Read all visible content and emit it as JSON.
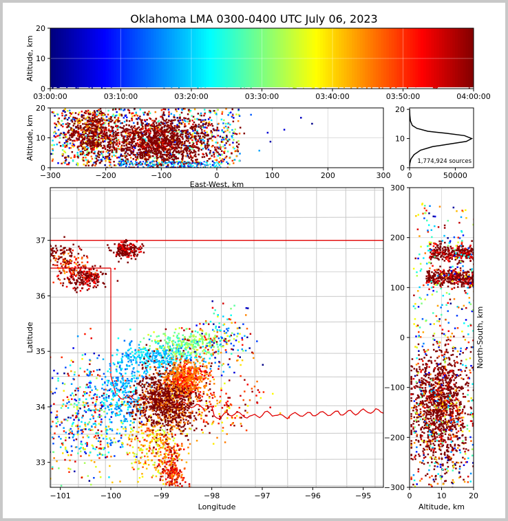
{
  "title": "Oklahoma LMA 0300-0400 UTC July 06, 2023",
  "colors": {
    "state_line": "#e00000",
    "county_line": "#c8c8c8",
    "grid": "#dddddd"
  },
  "colormap": [
    "#00007f",
    "#0000ff",
    "#007fff",
    "#00ffff",
    "#7fff7f",
    "#ffff00",
    "#ff7f00",
    "#ff0000",
    "#7f0000"
  ],
  "chart_data": [
    {
      "type": "scatter",
      "name_key": "time_altitude",
      "xlabel": "",
      "ylabel": "Altitude, km",
      "xlim": [
        "03:00:00",
        "04:00:00"
      ],
      "ylim": [
        0,
        20
      ],
      "x_ticks": [
        "03:00:00",
        "03:10:00",
        "03:20:00",
        "03:30:00",
        "03:40:00",
        "03:50:00",
        "04:00:00"
      ],
      "y_ticks": [
        0,
        10,
        20
      ],
      "note_color": "sources colored by time"
    },
    {
      "type": "scatter",
      "name_key": "ew_altitude",
      "xlabel": "East-West, km",
      "ylabel": "Altitude, km",
      "xlim": [
        -300,
        300
      ],
      "ylim": [
        0,
        20
      ],
      "x_ticks": [
        -300,
        -200,
        -100,
        0,
        100,
        200,
        300
      ],
      "y_ticks": [
        0,
        10,
        20
      ]
    },
    {
      "type": "line",
      "name_key": "altitude_histogram",
      "xlabel": "",
      "ylabel": "",
      "xlim": [
        0,
        70000
      ],
      "ylim": [
        0,
        20
      ],
      "x_ticks": [
        "0",
        "50000"
      ],
      "y_ticks": [
        0,
        10,
        20
      ],
      "annotation": "1,774,924 sources",
      "x": [
        0,
        300,
        1500,
        5000,
        12000,
        25000,
        45000,
        62000,
        68000,
        60000,
        40000,
        20000,
        8000,
        3000,
        1000,
        300,
        100
      ],
      "y": [
        0.5,
        1.5,
        3,
        4.5,
        6,
        7.2,
        8.2,
        9,
        10,
        11,
        11.8,
        12.5,
        13.5,
        14.5,
        16,
        18,
        20
      ]
    },
    {
      "type": "scatter",
      "name_key": "plan_view",
      "xlabel": "Longitude",
      "ylabel": "Latitude",
      "xlim": [
        -101.2,
        -94.6
      ],
      "ylim": [
        32.55,
        37.95
      ],
      "x_ticks": [
        -101,
        -100,
        -99,
        -98,
        -97,
        -96,
        -95
      ],
      "y_ticks": [
        33,
        34,
        35,
        36,
        37
      ],
      "x_tick_labels": [
        "−101",
        "−100",
        "−99",
        "−98",
        "−97",
        "−96",
        "−95"
      ]
    },
    {
      "type": "scatter",
      "name_key": "ns_altitude",
      "xlabel": "Altitude, km",
      "ylabel": "North-South, km",
      "xlim": [
        0,
        20
      ],
      "ylim": [
        -300,
        300
      ],
      "x_ticks": [
        0,
        10,
        20
      ],
      "y_ticks": [
        -300,
        -200,
        -100,
        0,
        100,
        200,
        300
      ],
      "y_tick_labels": [
        "−300",
        "−200",
        "−100",
        "0",
        "100",
        "200",
        "300"
      ]
    }
  ],
  "labels": {
    "ew_tick_labels": [
      "−300",
      "−200",
      "−100",
      "0",
      "100",
      "200",
      "300"
    ],
    "alt_tick_labels": [
      "0",
      "10",
      "20"
    ]
  }
}
